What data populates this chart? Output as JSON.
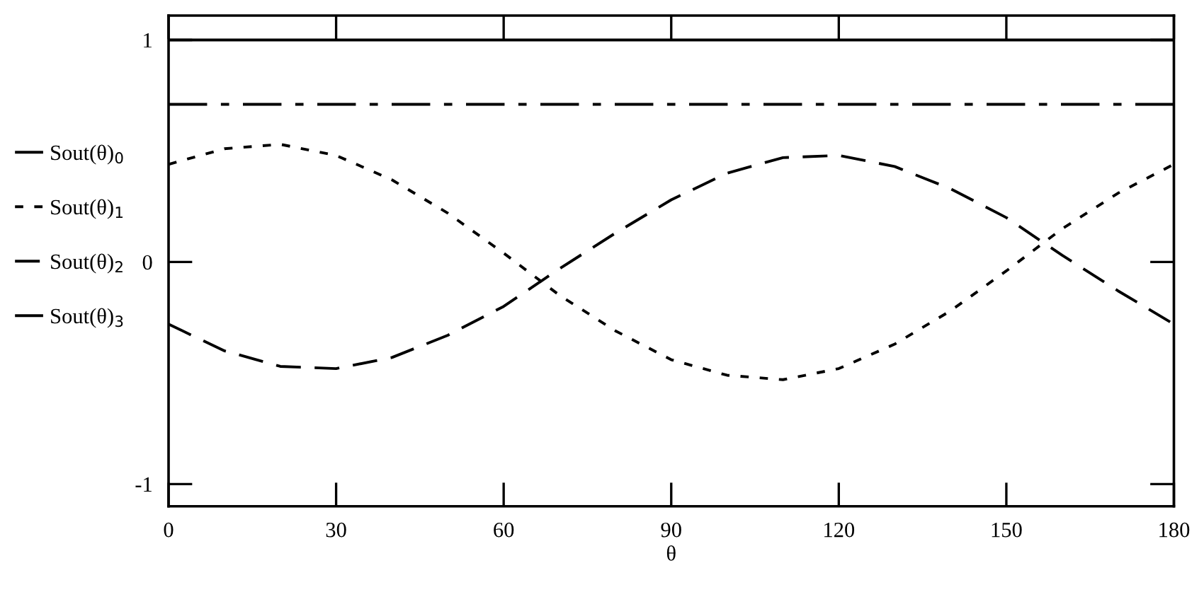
{
  "chart_data": {
    "type": "line",
    "xlabel": "θ",
    "x": [
      0,
      10,
      20,
      30,
      40,
      50,
      60,
      70,
      80,
      90,
      100,
      110,
      120,
      130,
      140,
      150,
      160,
      170,
      180
    ],
    "series": [
      {
        "name": "Sout(θ)$_{0}$",
        "color": "#000000",
        "line_style": "solid",
        "values": [
          1,
          1,
          1,
          1,
          1,
          1,
          1,
          1,
          1,
          1,
          1,
          1,
          1,
          1,
          1,
          1,
          1,
          1,
          1
        ]
      },
      {
        "name": "Sout(θ)$_{1}$",
        "color": "#000000",
        "line_style": "dotted",
        "values": [
          0.44,
          0.51,
          0.53,
          0.48,
          0.37,
          0.22,
          0.04,
          -0.15,
          -0.31,
          -0.44,
          -0.51,
          -0.53,
          -0.48,
          -0.37,
          -0.22,
          -0.04,
          0.15,
          0.31,
          0.44
        ]
      },
      {
        "name": "Sout(θ)$_{2}$",
        "color": "#000000",
        "line_style": "dashed",
        "values": [
          -0.28,
          -0.4,
          -0.47,
          -0.48,
          -0.43,
          -0.33,
          -0.2,
          -0.03,
          0.13,
          0.28,
          0.4,
          0.47,
          0.48,
          0.43,
          0.33,
          0.2,
          0.03,
          -0.13,
          -0.28
        ]
      },
      {
        "name": "Sout(θ)$_{3}$",
        "color": "#000000",
        "line_style": "dashdot",
        "values": [
          0.71,
          0.71,
          0.71,
          0.71,
          0.71,
          0.71,
          0.71,
          0.71,
          0.71,
          0.71,
          0.71,
          0.71,
          0.71,
          0.71,
          0.71,
          0.71,
          0.71,
          0.71,
          0.71
        ]
      }
    ],
    "xlim": [
      0,
      180
    ],
    "xticks": [
      0,
      30,
      60,
      90,
      120,
      150,
      180
    ],
    "ylim": [
      -1.1,
      1.11
    ],
    "yticks": [
      -1,
      0,
      1
    ],
    "grid": false,
    "legend": "left"
  }
}
